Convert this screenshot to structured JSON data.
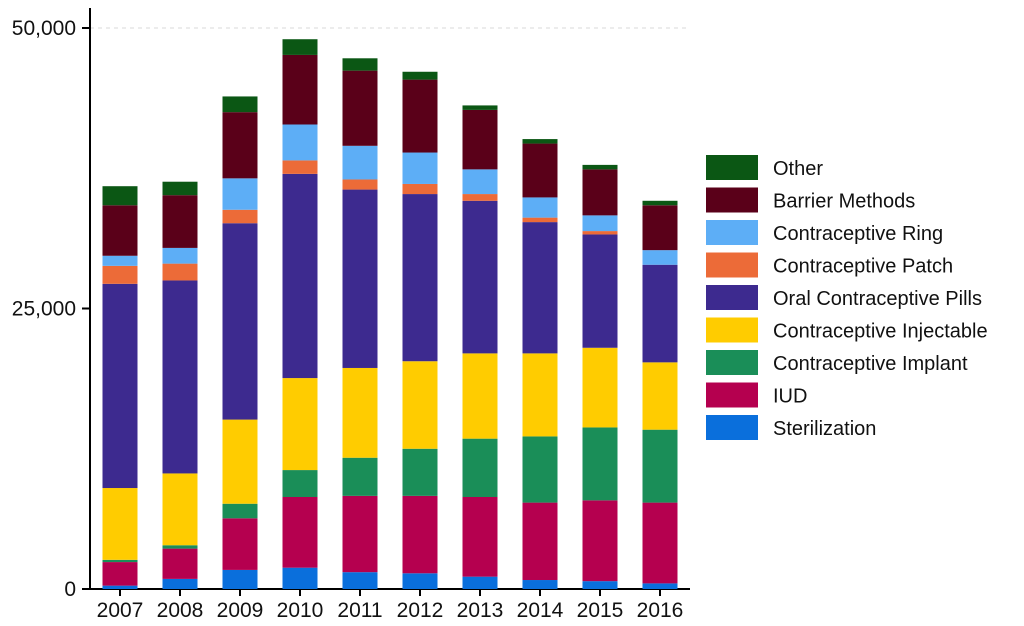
{
  "chart_data": {
    "type": "bar",
    "stacked": true,
    "categories": [
      "2007",
      "2008",
      "2009",
      "2010",
      "2011",
      "2012",
      "2013",
      "2014",
      "2015",
      "2016"
    ],
    "ylim": [
      0,
      50000
    ],
    "yticks": [
      0,
      25000,
      50000
    ],
    "ytick_labels": [
      "0",
      "25,000",
      "50,000"
    ],
    "grid": "horizontal dashed at top tick",
    "legend_position": "right",
    "series": [
      {
        "name": "Sterilization",
        "color": "#0a6fdc",
        "values": [
          300,
          900,
          1700,
          1900,
          1500,
          1400,
          1100,
          800,
          700,
          500
        ]
      },
      {
        "name": "IUD",
        "color": "#b5004f",
        "values": [
          2100,
          2700,
          4600,
          6300,
          6800,
          6900,
          7100,
          6900,
          7200,
          7200
        ]
      },
      {
        "name": "Contraceptive Implant",
        "color": "#1a8e58",
        "values": [
          200,
          300,
          1300,
          2400,
          3400,
          4200,
          5200,
          5900,
          6500,
          6500
        ]
      },
      {
        "name": "Contraceptive Injectable",
        "color": "#ffcc00",
        "values": [
          6400,
          6400,
          7500,
          8200,
          8000,
          7800,
          7600,
          7400,
          7100,
          6000
        ]
      },
      {
        "name": "Oral Contraceptive Pills",
        "color": "#3d2a8f",
        "values": [
          18200,
          17200,
          17500,
          18200,
          15900,
          14900,
          13600,
          11700,
          10100,
          8700
        ]
      },
      {
        "name": "Contraceptive Patch",
        "color": "#ec6b38",
        "values": [
          1600,
          1500,
          1200,
          1200,
          900,
          900,
          600,
          400,
          300,
          0
        ]
      },
      {
        "name": "Contraceptive Ring",
        "color": "#5daef6",
        "values": [
          900,
          1400,
          2800,
          3200,
          3000,
          2800,
          2200,
          1800,
          1400,
          1300
        ]
      },
      {
        "name": "Barrier Methods",
        "color": "#5a0019",
        "values": [
          4500,
          4700,
          5900,
          6200,
          6700,
          6500,
          5300,
          4800,
          4100,
          4000
        ]
      },
      {
        "name": "Other",
        "color": "#0b5714",
        "values": [
          1700,
          1200,
          1400,
          1400,
          1100,
          700,
          400,
          400,
          400,
          400
        ]
      }
    ]
  }
}
